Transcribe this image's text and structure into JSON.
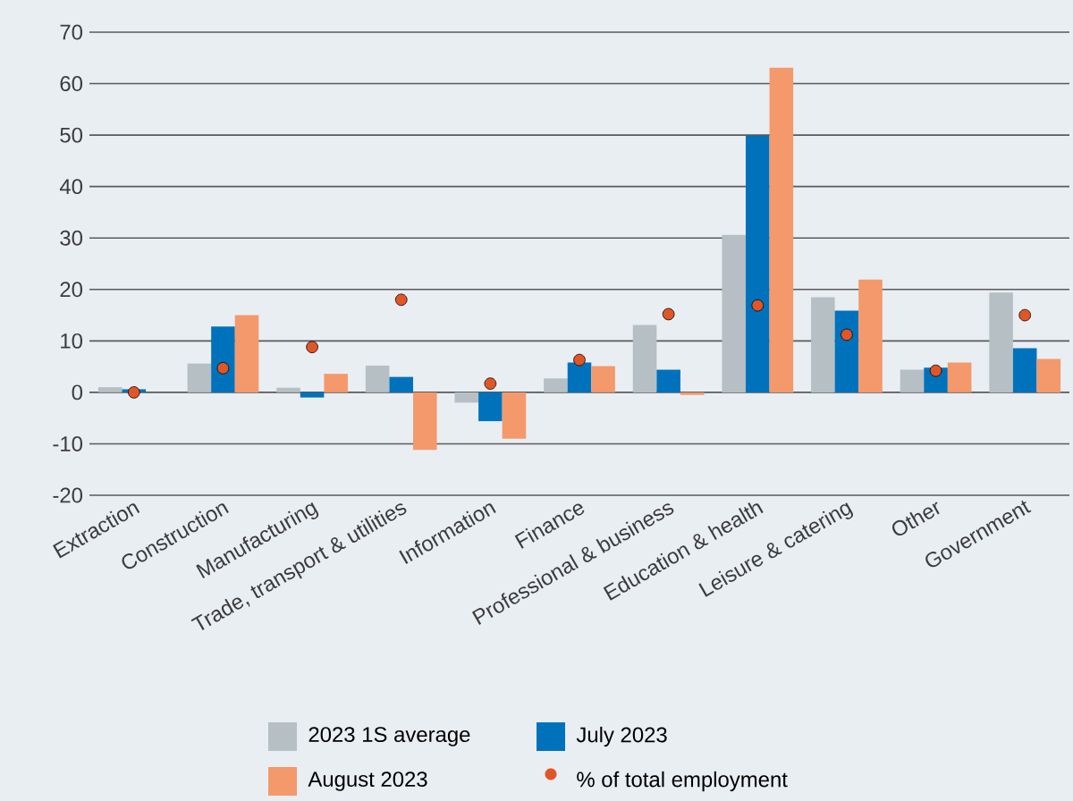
{
  "chart_data": {
    "type": "bar",
    "categories": [
      "Extraction",
      "Construction",
      "Manufacturing",
      "Trade, transport & utilities",
      "Information",
      "Finance",
      "Professional & business",
      "Education & health",
      "Leisure & catering",
      "Other",
      "Government"
    ],
    "series": [
      {
        "name": "2023 1S average",
        "color": "#b5bfc4",
        "values": [
          1.0,
          5.6,
          0.9,
          5.2,
          -2.0,
          2.7,
          13.1,
          30.6,
          18.5,
          4.4,
          19.4
        ]
      },
      {
        "name": "July 2023",
        "color": "#0072bb",
        "values": [
          0.6,
          12.8,
          -1.0,
          3.0,
          -5.6,
          5.8,
          4.4,
          49.9,
          15.9,
          4.8,
          8.6
        ]
      },
      {
        "name": "August 2023",
        "color": "#f4996b",
        "values": [
          0,
          15.0,
          3.6,
          -11.2,
          -9.0,
          5.1,
          -0.5,
          63.1,
          21.9,
          5.8,
          6.5
        ]
      },
      {
        "name": "% of total employment",
        "type": "scatter",
        "marker": "circle",
        "color": "#e05626",
        "values": [
          0,
          4.7,
          8.8,
          18.0,
          1.7,
          6.3,
          15.2,
          16.9,
          11.2,
          4.2,
          15.0
        ]
      }
    ],
    "ylim": [
      -20,
      70
    ],
    "yticks": [
      -20,
      -10,
      0,
      10,
      20,
      30,
      40,
      50,
      60,
      70
    ],
    "grid": "y",
    "legend": "bottom"
  }
}
